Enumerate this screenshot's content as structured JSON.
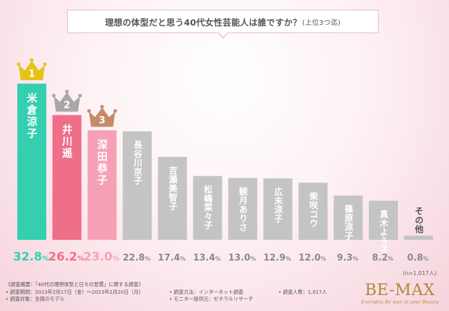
{
  "header": {
    "title": "理想の体型だと思う40代女性芸能人は誰ですか？",
    "title_suffix": "(上位3つ迄)"
  },
  "chart_data": {
    "type": "bar",
    "title": "理想の体型だと思う40代女性芸能人は誰ですか？(上位3つ迄)",
    "categories": [
      "米倉涼子",
      "井川遥",
      "深田恭子",
      "長谷川京子",
      "吉瀬美智子",
      "松嶋菜々子",
      "観月ありさ",
      "広末涼子",
      "柴咲コウ",
      "篠原涼子",
      "真木よう子",
      "その他"
    ],
    "values": [
      32.8,
      26.2,
      23.0,
      22.8,
      17.4,
      13.4,
      13.0,
      12.9,
      12.0,
      9.3,
      8.2,
      0.8
    ],
    "value_labels": [
      "32.8",
      "26.2",
      "23.0",
      "22.8",
      "17.4",
      "13.4",
      "13.0",
      "12.9",
      "12.0",
      "9.3",
      "8.2",
      "0.8"
    ],
    "unit": "%",
    "rank_badges": [
      "1",
      "2",
      "3"
    ],
    "colors": [
      "#35cfb0",
      "#ef6f8a",
      "#f6a0b6",
      "#c4c4c4",
      "#c4c4c4",
      "#c4c4c4",
      "#c4c4c4",
      "#c4c4c4",
      "#c4c4c4",
      "#c4c4c4",
      "#c4c4c4",
      "#c4c4c4"
    ],
    "value_colors": [
      "#35cfb0",
      "#ef6f8a",
      "#f6a0b6",
      "#8a8a8a",
      "#8a8a8a",
      "#8a8a8a",
      "#8a8a8a",
      "#8a8a8a",
      "#8a8a8a",
      "#8a8a8a",
      "#8a8a8a",
      "#8a8a8a"
    ],
    "crown_colors": [
      "#e8c21a",
      "#a7a7a7",
      "#c48a6a"
    ],
    "ylim": [
      0,
      35
    ],
    "grid": false,
    "legend": "none"
  },
  "footer": {
    "sample_size": "(n=1,017人)",
    "survey_overview": "《調査概要：「40代の理想体型と日々の習慣」に関する調査》",
    "survey_period": "• 調査期間：2023年2月17日（金）〜2023年2月20日（月）",
    "survey_method": "• 調査方法：インターネット調査",
    "survey_count": "• 調査人数：1,017人",
    "survey_target": "• 調査対象：全国のモデル",
    "survey_provider": "• モニター提供元：ゼネラルリサーチ"
  },
  "logo": {
    "brand": "BE-MAX",
    "tagline": "Everyday Be max in your Beauty"
  }
}
